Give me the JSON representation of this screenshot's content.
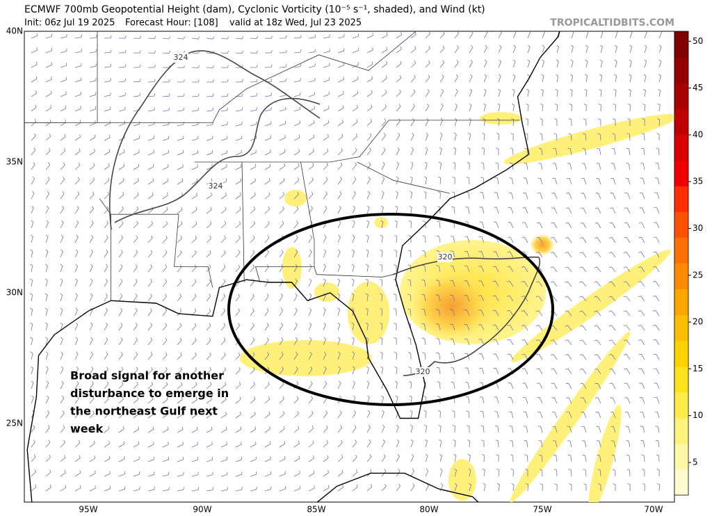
{
  "header": {
    "title": "ECMWF 700mb Geopotential Height (dam), Cyclonic Vorticity (10⁻⁵ s⁻¹, shaded), and Wind (kt)",
    "init": "Init: 06z Jul 19 2025",
    "forecast_hour": "Forecast Hour: [108]",
    "valid": "valid at 18z Wed, Jul 23 2025",
    "credit": "TROPICALTIDBITS.COM"
  },
  "latitude_labels": [
    "40N",
    "35N",
    "30N",
    "25N"
  ],
  "longitude_labels": [
    "95W",
    "90W",
    "85W",
    "80W",
    "75W",
    "70W"
  ],
  "colorbar_ticks": [
    "5",
    "10",
    "15",
    "20",
    "25",
    "30",
    "35",
    "40",
    "45",
    "50"
  ],
  "contour_labels": [
    "324",
    "324",
    "320",
    "320"
  ],
  "annotation": [
    "Broad signal for another",
    "disturbance to emerge in",
    "the northeast Gulf next",
    "week"
  ]
}
